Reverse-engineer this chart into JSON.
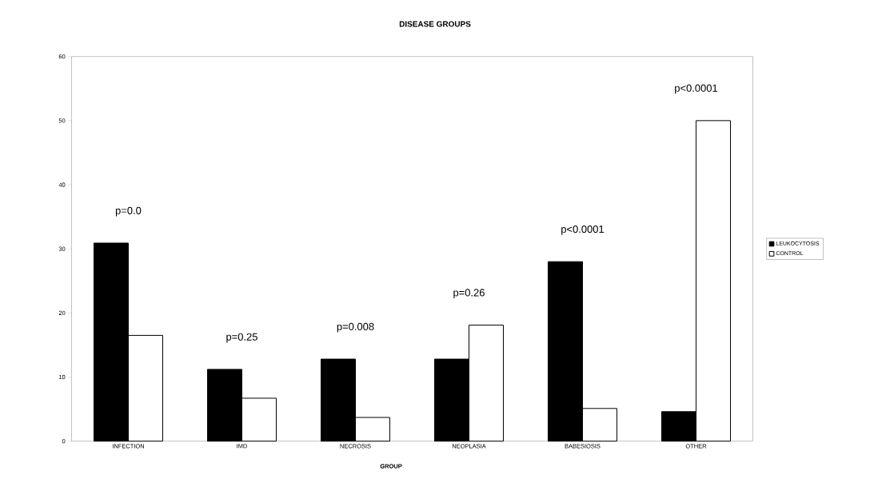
{
  "chart_data": {
    "type": "bar",
    "title": "DISEASE GROUPS",
    "xlabel": "GROUP",
    "categories": [
      "INFECTION",
      "IMD",
      "NECROSIS",
      "NEOPLASIA",
      "BABESIOSIS",
      "OTHER"
    ],
    "series": [
      {
        "name": "LEUKOCYTOSIS",
        "color": "#000000",
        "values": [
          30.9,
          11.2,
          12.8,
          12.8,
          28.0,
          4.6
        ]
      },
      {
        "name": "CONTROL",
        "color": "#ffffff",
        "values": [
          16.5,
          6.7,
          3.7,
          18.1,
          5.1,
          50.0
        ]
      }
    ],
    "ylim": [
      0,
      60
    ],
    "yticks": [
      0,
      10,
      20,
      30,
      40,
      50,
      60
    ],
    "grid": false,
    "legend": "right",
    "annotations": [
      "p=0.0",
      "p=0.25",
      "p=0.008",
      "p=0.26",
      "p<0.0001",
      "p<0.0001"
    ]
  }
}
